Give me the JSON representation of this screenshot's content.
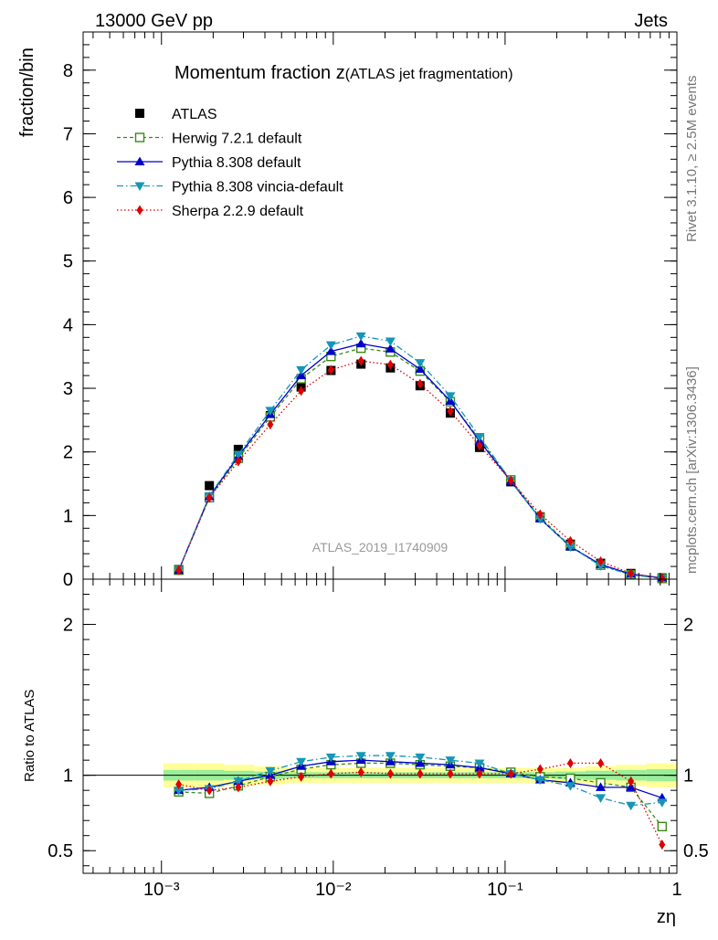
{
  "header": {
    "process": "13000 GeV pp",
    "category": "Jets",
    "side_rivet": "Rivet 3.1.10, ≥ 2.5M events",
    "side_mcplots": "mcplots.cern.ch [arXiv:1306.3436]",
    "watermark": "ATLAS_2019_I1740909"
  },
  "chart_data": [
    {
      "type": "line",
      "role": "main",
      "title_main": "Momentum fraction z",
      "title_paren": "(ATLAS jet fragmentation)",
      "ylabel": "fraction/bin",
      "xlabel": "zη",
      "xscale": "log",
      "xlim": [
        0.00035,
        1.0
      ],
      "ylim": [
        0,
        8.6
      ],
      "yticks": [
        0,
        1,
        2,
        3,
        4,
        5,
        6,
        7,
        8
      ],
      "ytick_labels": [
        "0",
        "1",
        "2",
        "3",
        "4",
        "5",
        "6",
        "7",
        "8"
      ],
      "x": [
        0.00126,
        0.0019,
        0.0028,
        0.0043,
        0.0065,
        0.0097,
        0.0145,
        0.0215,
        0.032,
        0.048,
        0.071,
        0.108,
        0.16,
        0.24,
        0.36,
        0.54,
        0.82
      ],
      "series": [
        {
          "name": "ATLAS",
          "color": "#000000",
          "marker": "square-filled",
          "dash": "none",
          "values": [
            0.15,
            1.47,
            2.04,
            2.57,
            3.02,
            3.28,
            3.38,
            3.32,
            3.04,
            2.61,
            2.07,
            1.53,
            0.98,
            0.55,
            0.25,
            0.09,
            0.02
          ]
        },
        {
          "name": "Herwig 7.2.1 default",
          "color": "#3a8a14",
          "marker": "square-open",
          "dash": "4,3",
          "values": [
            0.14,
            1.28,
            1.9,
            2.55,
            3.15,
            3.5,
            3.63,
            3.57,
            3.27,
            2.79,
            2.2,
            1.56,
            0.97,
            0.52,
            0.22,
            0.07,
            0.01
          ]
        },
        {
          "name": "Pythia 8.308 default",
          "color": "#0000cc",
          "marker": "triangle-up",
          "dash": "none",
          "values": [
            0.14,
            1.3,
            1.93,
            2.59,
            3.2,
            3.58,
            3.7,
            3.62,
            3.3,
            2.8,
            2.17,
            1.54,
            0.95,
            0.51,
            0.23,
            0.08,
            0.02
          ]
        },
        {
          "name": "Pythia 8.308 vincia-default",
          "color": "#1596b8",
          "marker": "triangle-down",
          "dash": "7,3,1.5,3",
          "values": [
            0.14,
            1.31,
            1.96,
            2.65,
            3.29,
            3.68,
            3.82,
            3.74,
            3.4,
            2.88,
            2.24,
            1.55,
            0.95,
            0.51,
            0.21,
            0.07,
            0.01
          ]
        },
        {
          "name": "Sherpa 2.2.9 default",
          "color": "#dd0000",
          "marker": "diamond",
          "dash": "1.5,2.5",
          "values": [
            0.14,
            1.28,
            1.85,
            2.43,
            2.96,
            3.29,
            3.43,
            3.37,
            3.07,
            2.64,
            2.1,
            1.55,
            1.02,
            0.6,
            0.28,
            0.09,
            0.015
          ]
        }
      ],
      "legend": "top-left"
    },
    {
      "type": "line",
      "role": "ratio",
      "ylabel": "Ratio to ATLAS",
      "xscale": "log",
      "xlim": [
        0.00035,
        1.0
      ],
      "ylim": [
        0.35,
        2.3
      ],
      "yticks": [
        0.5,
        1,
        2
      ],
      "ytick_labels": [
        "0.5",
        "1",
        "2"
      ],
      "xtick_labels": [
        "10⁻³",
        "10⁻²",
        "10⁻¹",
        "1"
      ],
      "band_yellow_halfwidth": [
        0.08,
        0.08,
        0.07,
        0.06,
        0.05,
        0.05,
        0.05,
        0.05,
        0.05,
        0.05,
        0.05,
        0.05,
        0.05,
        0.05,
        0.06,
        0.07,
        0.08
      ],
      "band_green_halfwidth": [
        0.035,
        0.035,
        0.03,
        0.025,
        0.02,
        0.02,
        0.02,
        0.02,
        0.02,
        0.02,
        0.02,
        0.02,
        0.02,
        0.025,
        0.03,
        0.035,
        0.04
      ],
      "series": [
        {
          "name": "Herwig 7.2.1 default",
          "values": [
            0.89,
            0.88,
            0.93,
            0.99,
            1.04,
            1.07,
            1.08,
            1.08,
            1.07,
            1.06,
            1.05,
            1.02,
            0.99,
            0.98,
            0.95,
            0.92,
            0.66
          ]
        },
        {
          "name": "Pythia 8.308 default",
          "values": [
            0.9,
            0.92,
            0.96,
            1.0,
            1.06,
            1.09,
            1.1,
            1.09,
            1.08,
            1.07,
            1.05,
            1.01,
            0.97,
            0.95,
            0.92,
            0.92,
            0.85
          ]
        },
        {
          "name": "Pythia 8.308 vincia-default",
          "values": [
            0.9,
            0.91,
            0.96,
            1.03,
            1.09,
            1.12,
            1.13,
            1.13,
            1.12,
            1.1,
            1.08,
            1.01,
            0.97,
            0.93,
            0.85,
            0.8,
            0.82
          ]
        },
        {
          "name": "Sherpa 2.2.9 default",
          "values": [
            0.94,
            0.9,
            0.92,
            0.96,
            0.99,
            1.01,
            1.02,
            1.01,
            1.01,
            1.01,
            1.01,
            1.01,
            1.04,
            1.08,
            1.08,
            0.96,
            0.54
          ]
        }
      ]
    }
  ]
}
